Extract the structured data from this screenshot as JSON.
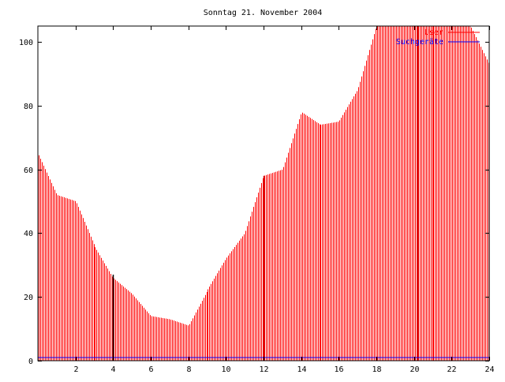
{
  "chart_data": {
    "type": "bar",
    "title": "Sonntag 21. November 2004",
    "xlabel": "",
    "ylabel": "",
    "xlim": [
      0,
      24
    ],
    "ylim": [
      0,
      105
    ],
    "xticks": [
      "2",
      "4",
      "6",
      "8",
      "10",
      "12",
      "14",
      "16",
      "18",
      "20",
      "22",
      "24"
    ],
    "yticks": [
      "0",
      "20",
      "40",
      "60",
      "80",
      "100"
    ],
    "grid": false,
    "legend_position": "top-right",
    "series": [
      {
        "name": "User",
        "color": "#ff0000",
        "x": [
          0,
          1,
          2,
          3,
          4,
          5,
          6,
          7,
          8,
          9,
          10,
          11,
          12,
          13,
          14,
          15,
          16,
          17,
          18,
          19,
          20,
          21,
          22,
          23,
          24
        ],
        "values": [
          65,
          52,
          50,
          36,
          26,
          21,
          14,
          13,
          11,
          22,
          32,
          40,
          58,
          60,
          78,
          74,
          75,
          85,
          105,
          105,
          105,
          105,
          105,
          105,
          93
        ]
      },
      {
        "name": "Suchgeräte",
        "color": "#0000ff",
        "x": [
          0,
          24
        ],
        "values": [
          1,
          1
        ]
      }
    ],
    "highlight_lines": [
      {
        "x": 4.0,
        "color": "#000000",
        "height": 27
      },
      {
        "x": 12.0,
        "color": "#cc0000",
        "height": 58
      },
      {
        "x": 20.2,
        "color": "#cc0000",
        "height": 105
      }
    ]
  }
}
